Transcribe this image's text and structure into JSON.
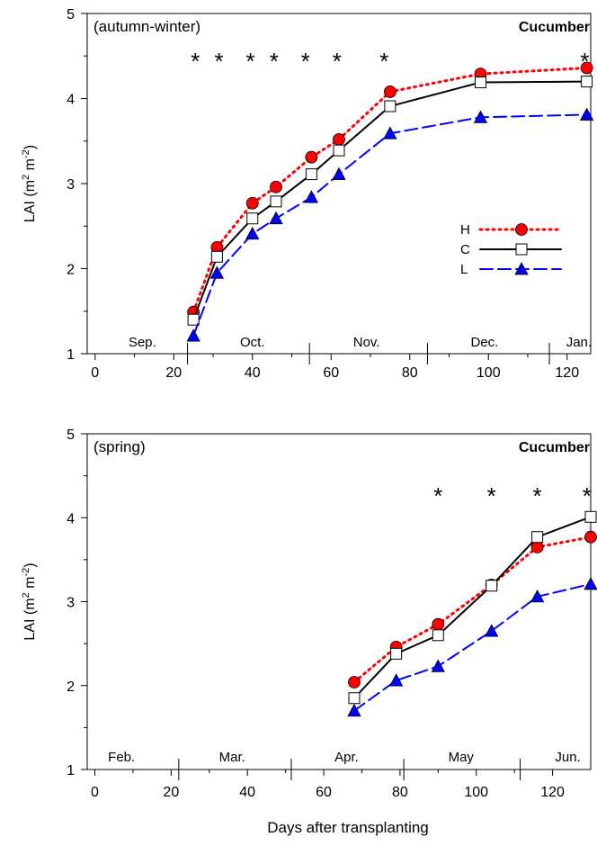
{
  "chart_data": [
    {
      "type": "line",
      "panel_label": "(autumn-winter)",
      "crop_label": "Cucumber",
      "ylabel": "LAI (m² m⁻²)",
      "ylabel_parts": {
        "base": "LAI (m",
        "sup1": "2",
        "mid": " m",
        "sup2": "-2",
        "end": ")"
      },
      "xlabel": "",
      "xlim": [
        -2,
        126
      ],
      "ylim": [
        1,
        5
      ],
      "x_ticks": [
        0,
        20,
        40,
        60,
        80,
        100,
        120
      ],
      "y_ticks": [
        1,
        2,
        3,
        4,
        5
      ],
      "x_minor_ticks": [
        10,
        30,
        50,
        70,
        90,
        110
      ],
      "y_minor_ticks": [
        1.5,
        2.5,
        3.5,
        4.5
      ],
      "month_labels": [
        {
          "text": "Sep.",
          "x": 12
        },
        {
          "text": "Oct.",
          "x": 40
        },
        {
          "text": "Nov.",
          "x": 69
        },
        {
          "text": "Dec.",
          "x": 99
        },
        {
          "text": "Jan.",
          "x": 123
        }
      ],
      "month_boundaries": [
        23.5,
        54.5,
        84.5,
        115.5
      ],
      "significance_x": [
        25.5,
        31.5,
        39.5,
        45.5,
        53.5,
        61.5,
        73.5,
        124.5
      ],
      "significance_symbol": "*",
      "legend": {
        "position": "right",
        "entries": [
          "H",
          "C",
          "L"
        ]
      },
      "series": [
        {
          "name": "H",
          "x": [
            25,
            31,
            40,
            46,
            55,
            62,
            75,
            98,
            125
          ],
          "values": [
            1.49,
            2.25,
            2.77,
            2.96,
            3.31,
            3.52,
            4.08,
            4.29,
            4.36
          ]
        },
        {
          "name": "C",
          "x": [
            25,
            31,
            40,
            46,
            55,
            62,
            75,
            98,
            125
          ],
          "values": [
            1.4,
            2.14,
            2.59,
            2.79,
            3.11,
            3.39,
            3.91,
            4.19,
            4.2
          ]
        },
        {
          "name": "L",
          "x": [
            25,
            31,
            40,
            46,
            55,
            62,
            75,
            98,
            125
          ],
          "values": [
            1.21,
            1.95,
            2.41,
            2.59,
            2.84,
            3.11,
            3.59,
            3.78,
            3.81
          ]
        }
      ]
    },
    {
      "type": "line",
      "panel_label": "(spring)",
      "crop_label": "Cucumber",
      "ylabel": "LAI (m² m⁻²)",
      "ylabel_parts": {
        "base": "LAI (m",
        "sup1": "2",
        "mid": " m",
        "sup2": "-2",
        "end": ")"
      },
      "xlabel": "Days after transplanting",
      "xlim": [
        -2,
        130
      ],
      "ylim": [
        1,
        5
      ],
      "x_ticks": [
        0,
        20,
        40,
        60,
        80,
        100,
        120
      ],
      "y_ticks": [
        1,
        2,
        3,
        4,
        5
      ],
      "x_minor_ticks": [
        10,
        30,
        50,
        70,
        90,
        110
      ],
      "y_minor_ticks": [
        1.5,
        2.5,
        3.5,
        4.5
      ],
      "month_labels": [
        {
          "text": "Feb.",
          "x": 7
        },
        {
          "text": "Mar.",
          "x": 36
        },
        {
          "text": "Apr.",
          "x": 66
        },
        {
          "text": "May",
          "x": 96
        },
        {
          "text": "Jun.",
          "x": 124
        }
      ],
      "month_boundaries": [
        22,
        51.5,
        81,
        111.5
      ],
      "significance_x": [
        90,
        104,
        116,
        129
      ],
      "significance_symbol": "*",
      "legend": null,
      "series": [
        {
          "name": "H",
          "x": [
            68,
            79,
            90,
            104,
            116,
            130
          ],
          "values": [
            2.04,
            2.46,
            2.73,
            3.2,
            3.65,
            3.77
          ]
        },
        {
          "name": "C",
          "x": [
            68,
            79,
            90,
            104,
            116,
            130
          ],
          "values": [
            1.85,
            2.38,
            2.6,
            3.19,
            3.77,
            4.01
          ]
        },
        {
          "name": "L",
          "x": [
            68,
            79,
            90,
            104,
            116,
            130
          ],
          "values": [
            1.7,
            2.06,
            2.23,
            2.65,
            3.06,
            3.21
          ]
        }
      ]
    }
  ],
  "series_style": {
    "H": {
      "color": "#ff0000",
      "marker": "circle",
      "marker_fill": "#ff0000",
      "dash": "dotted"
    },
    "C": {
      "color": "#000000",
      "marker": "square",
      "marker_fill": "#ffffff",
      "dash": "solid"
    },
    "L": {
      "color": "#0000ff",
      "marker": "triangle",
      "marker_fill": "#0000ff",
      "dash": "dashed"
    }
  }
}
